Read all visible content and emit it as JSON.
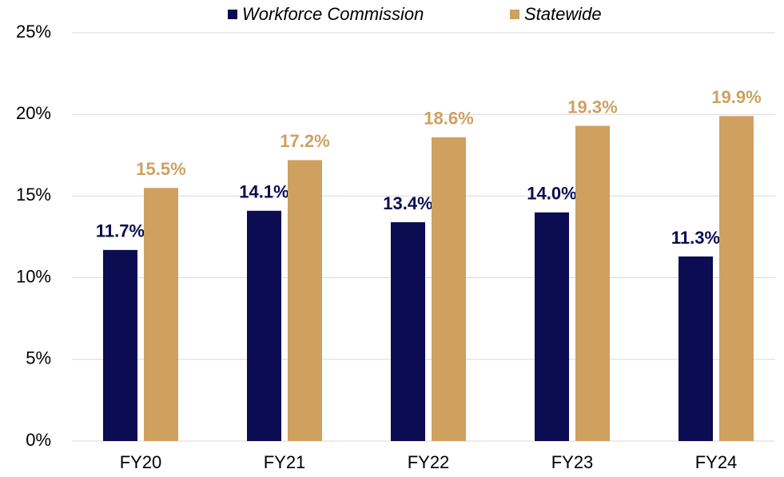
{
  "chart_data": {
    "type": "bar",
    "categories": [
      "FY20",
      "FY21",
      "FY22",
      "FY23",
      "FY24"
    ],
    "series": [
      {
        "name": "Workforce Commission",
        "color": "#0c0c52",
        "values": [
          11.7,
          14.1,
          13.4,
          14.0,
          11.3
        ],
        "value_labels": [
          "11.7%",
          "14.1%",
          "13.4%",
          "14.0%",
          "11.3%"
        ]
      },
      {
        "name": "Statewide",
        "color": "#cfa060",
        "values": [
          15.5,
          17.2,
          18.6,
          19.3,
          19.9
        ],
        "value_labels": [
          "15.5%",
          "17.2%",
          "18.6%",
          "19.3%",
          "19.9%"
        ]
      }
    ],
    "ylim": [
      0,
      25
    ],
    "yticks": [
      {
        "value": 0,
        "label": "0%"
      },
      {
        "value": 5,
        "label": "5%"
      },
      {
        "value": 10,
        "label": "10%"
      },
      {
        "value": 15,
        "label": "15%"
      },
      {
        "value": 20,
        "label": "20%"
      },
      {
        "value": 25,
        "label": "25%"
      }
    ],
    "grid": true,
    "legend": "top"
  }
}
